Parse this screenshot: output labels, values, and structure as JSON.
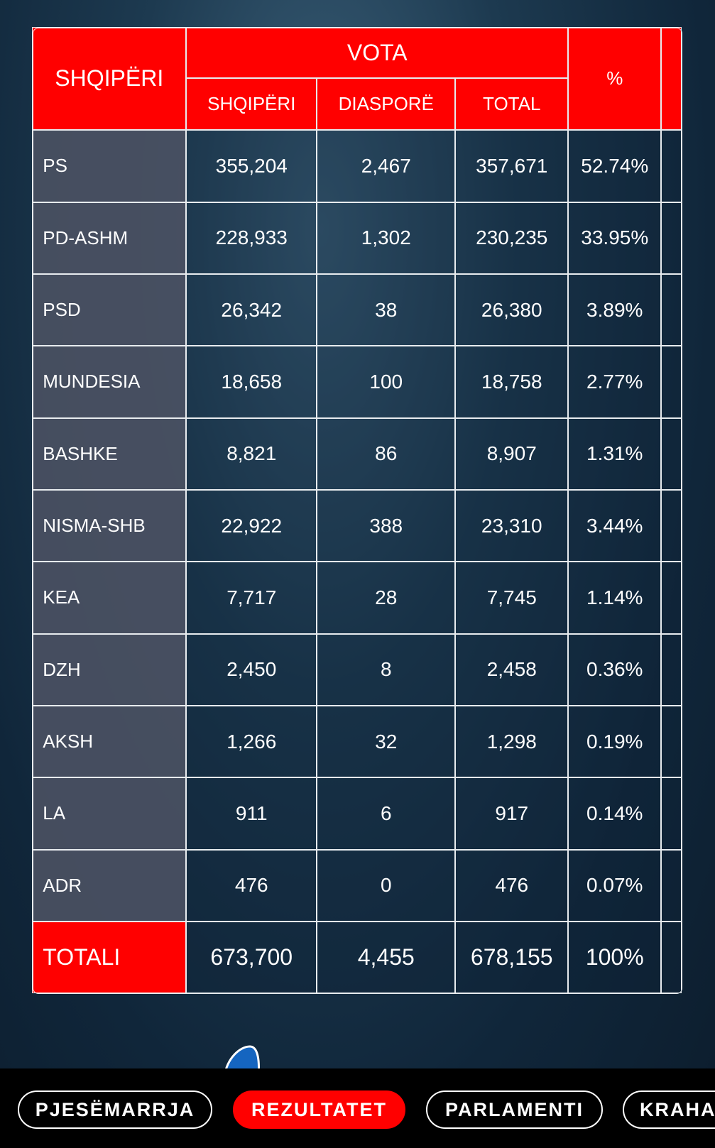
{
  "table": {
    "header": {
      "party": "SHQIPËRI",
      "group": "VOTA",
      "columns": [
        "SHQIPËRI",
        "DIASPORË",
        "TOTAL"
      ],
      "percent": "%"
    },
    "rows": [
      [
        "PS",
        "355,204",
        "2,467",
        "357,671",
        "52.74%"
      ],
      [
        "PD-ASHM",
        "228,933",
        "1,302",
        "230,235",
        "33.95%"
      ],
      [
        "PSD",
        "26,342",
        "38",
        "26,380",
        "3.89%"
      ],
      [
        "MUNDESIA",
        "18,658",
        "100",
        "18,758",
        "2.77%"
      ],
      [
        "BASHKE",
        "8,821",
        "86",
        "8,907",
        "1.31%"
      ],
      [
        "NISMA-SHB",
        "22,922",
        "388",
        "23,310",
        "3.44%"
      ],
      [
        "KEA",
        "7,717",
        "28",
        "7,745",
        "1.14%"
      ],
      [
        "DZH",
        "2,450",
        "8",
        "2,458",
        "0.36%"
      ],
      [
        "AKSH",
        "1,266",
        "32",
        "1,298",
        "0.19%"
      ],
      [
        "LA",
        "911",
        "6",
        "917",
        "0.14%"
      ],
      [
        "ADR",
        "476",
        "0",
        "476",
        "0.07%"
      ]
    ],
    "total": [
      "TOTALI",
      "673,700",
      "4,455",
      "678,155",
      "100%"
    ]
  },
  "nav": {
    "items": [
      "PJESËMARRJA",
      "REZULTATET",
      "PARLAMENTI",
      "KRAHA"
    ]
  }
}
